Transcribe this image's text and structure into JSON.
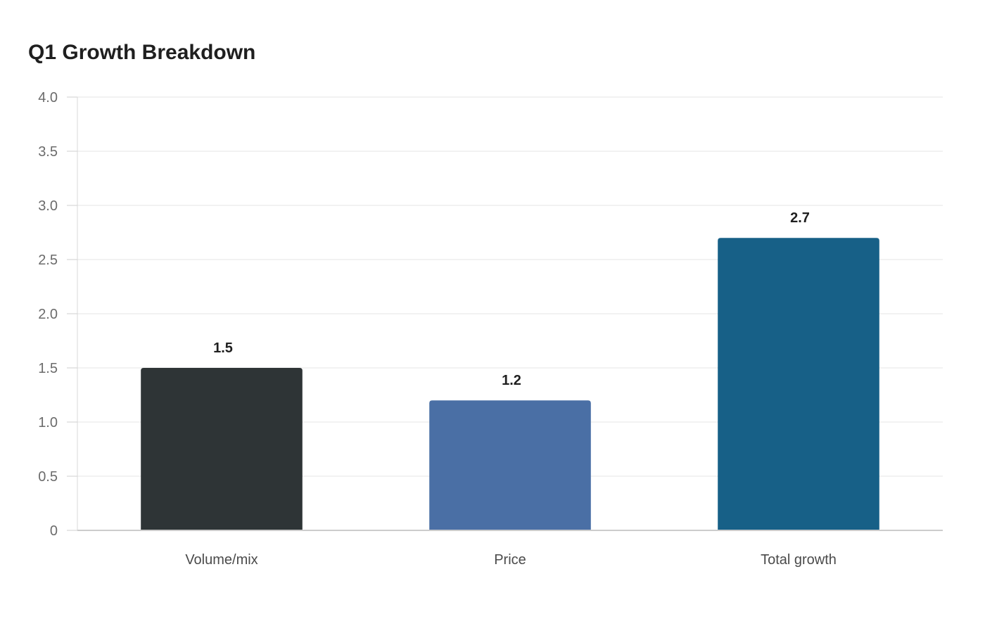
{
  "chart_data": {
    "type": "bar",
    "title": "Q1 Growth Breakdown",
    "xlabel": "",
    "ylabel": "",
    "categories": [
      "Volume/mix",
      "Price",
      "Total growth"
    ],
    "values": [
      1.5,
      1.2,
      2.7
    ],
    "value_labels": [
      "1.5",
      "1.2",
      "2.7"
    ],
    "colors": [
      "#2e3436",
      "#4a6fa5",
      "#176087"
    ],
    "ylim": [
      0,
      4.0
    ],
    "yticks": [
      0,
      0.5,
      1.0,
      1.5,
      2.0,
      2.5,
      3.0,
      3.5,
      4.0
    ],
    "ytick_labels": [
      "0",
      "0.5",
      "1.0",
      "1.5",
      "2.0",
      "2.5",
      "3.0",
      "3.5",
      "4.0"
    ],
    "grid": true,
    "legend": "none"
  }
}
